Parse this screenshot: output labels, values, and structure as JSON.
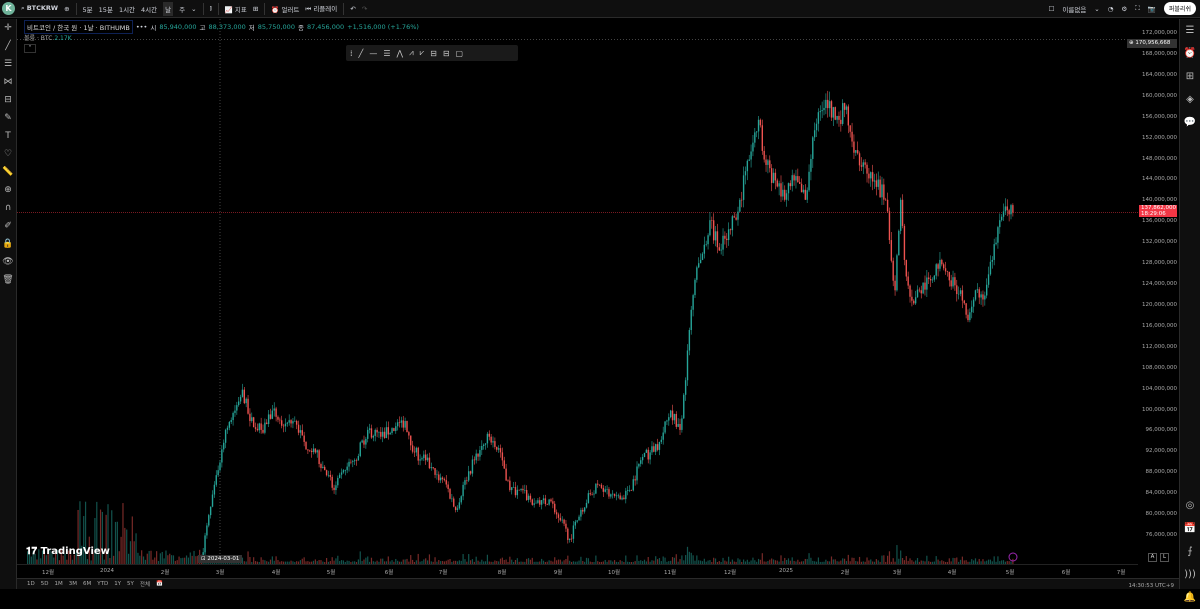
{
  "topbar": {
    "avatar": "K",
    "symbol": "BTCKRW",
    "intervals": [
      "5분",
      "15분",
      "1시간",
      "4시간",
      "날",
      "주"
    ],
    "active_interval": "날",
    "indicators": "지표",
    "alert": "얼러트",
    "replay": "리플레이",
    "layout_name": "이름없음",
    "publish": "퍼블리쉬"
  },
  "legend": {
    "title": "비트코인 / 한국 원 · 1날 · BITHUMB",
    "o_label": "시",
    "o": "85,940,000",
    "h_label": "고",
    "h": "88,373,000",
    "l_label": "저",
    "l": "85,750,000",
    "c_label": "종",
    "c": "87,456,000",
    "change": "+1,516,000 (+1.76%)"
  },
  "volume": {
    "label": "볼륨 · BTC",
    "value": "2.17K"
  },
  "price_axis": {
    "labels": [
      "172,000,000",
      "168,000,000",
      "164,000,000",
      "160,000,000",
      "156,000,000",
      "152,000,000",
      "148,000,000",
      "144,000,000",
      "140,000,000",
      "136,000,000",
      "132,000,000",
      "128,000,000",
      "124,000,000",
      "120,000,000",
      "116,000,000",
      "112,000,000",
      "108,000,000",
      "104,000,000",
      "100,000,000",
      "96,000,000",
      "92,000,000",
      "88,000,000",
      "84,000,000",
      "80,000,000",
      "76,000,000"
    ],
    "crosshair_price": "170,956,668",
    "current_price": "137,862,000",
    "countdown": "18:29:06"
  },
  "time_axis": {
    "labels": [
      "12월",
      "2024",
      "2월",
      "3월",
      "4월",
      "5월",
      "6월",
      "7월",
      "8월",
      "9월",
      "10월",
      "11월",
      "12월",
      "2025",
      "2월",
      "3월",
      "4월",
      "5월",
      "6월",
      "7월"
    ],
    "crosshair_date": "2024-03-01"
  },
  "bottombar": {
    "ranges": [
      "1D",
      "5D",
      "1M",
      "3M",
      "6M",
      "YTD",
      "1Y",
      "5Y",
      "전체"
    ],
    "clock": "14:30:53 UTC+9",
    "auto": "A",
    "log": "L"
  },
  "brand": "TradingView",
  "colors": {
    "up": "#26a69a",
    "down": "#ef5350",
    "current": "#f23645"
  },
  "chart_data": {
    "type": "candlestick",
    "ylim": [
      74000000,
      174000000
    ],
    "xlim": [
      "2023-11-10",
      "2025-07-20"
    ],
    "closes": [
      [
        "2024-02-20",
        72000000
      ],
      [
        "2024-02-29",
        88600000
      ],
      [
        "2024-03-04",
        96300000
      ],
      [
        "2024-03-09",
        100000000
      ],
      [
        "2024-03-13",
        104000000
      ],
      [
        "2024-03-17",
        98000000
      ],
      [
        "2024-03-23",
        96300000
      ],
      [
        "2024-03-29",
        100000000
      ],
      [
        "2024-04-04",
        97000000
      ],
      [
        "2024-04-10",
        98000000
      ],
      [
        "2024-04-15",
        94000000
      ],
      [
        "2024-04-21",
        92000000
      ],
      [
        "2024-04-26",
        88600000
      ],
      [
        "2024-05-01",
        84800000
      ],
      [
        "2024-05-07",
        88600000
      ],
      [
        "2024-05-12",
        90500000
      ],
      [
        "2024-05-19",
        96300000
      ],
      [
        "2024-05-26",
        95000000
      ],
      [
        "2024-06-03",
        97000000
      ],
      [
        "2024-06-08",
        98000000
      ],
      [
        "2024-06-13",
        92000000
      ],
      [
        "2024-06-19",
        90500000
      ],
      [
        "2024-06-24",
        87700000
      ],
      [
        "2024-06-29",
        86700000
      ],
      [
        "2024-07-05",
        81000000
      ],
      [
        "2024-07-10",
        86700000
      ],
      [
        "2024-07-15",
        90500000
      ],
      [
        "2024-07-23",
        95000000
      ],
      [
        "2024-07-29",
        92000000
      ],
      [
        "2024-08-03",
        84800000
      ],
      [
        "2024-08-08",
        84800000
      ],
      [
        "2024-08-14",
        83000000
      ],
      [
        "2024-08-19",
        82000000
      ],
      [
        "2024-08-24",
        83000000
      ],
      [
        "2024-08-30",
        79000000
      ],
      [
        "2024-09-04",
        75500000
      ],
      [
        "2024-09-10",
        81000000
      ],
      [
        "2024-09-15",
        84000000
      ],
      [
        "2024-09-20",
        85800000
      ],
      [
        "2024-09-26",
        84000000
      ],
      [
        "2024-10-01",
        83000000
      ],
      [
        "2024-10-06",
        84800000
      ],
      [
        "2024-10-12",
        90500000
      ],
      [
        "2024-10-17",
        92000000
      ],
      [
        "2024-10-22",
        94000000
      ],
      [
        "2024-10-28",
        100000000
      ],
      [
        "2024-11-02",
        96300000
      ],
      [
        "2024-11-05",
        105800000
      ],
      [
        "2024-11-07",
        115400000
      ],
      [
        "2024-11-10",
        125000000
      ],
      [
        "2024-11-13",
        128800000
      ],
      [
        "2024-11-18",
        136400000
      ],
      [
        "2024-11-23",
        130600000
      ],
      [
        "2024-11-29",
        134500000
      ],
      [
        "2024-12-04",
        140300000
      ],
      [
        "2024-12-09",
        148000000
      ],
      [
        "2024-12-14",
        155600000
      ],
      [
        "2024-12-17",
        148000000
      ],
      [
        "2024-12-23",
        144000000
      ],
      [
        "2024-12-28",
        140300000
      ],
      [
        "2025-01-02",
        144000000
      ],
      [
        "2025-01-08",
        140300000
      ],
      [
        "2025-01-13",
        153600000
      ],
      [
        "2025-01-19",
        159400000
      ],
      [
        "2025-01-24",
        155600000
      ],
      [
        "2025-01-29",
        157500000
      ],
      [
        "2025-02-04",
        149800000
      ],
      [
        "2025-02-09",
        147000000
      ],
      [
        "2025-02-14",
        144000000
      ],
      [
        "2025-02-20",
        140300000
      ],
      [
        "2025-02-22",
        132600000
      ],
      [
        "2025-02-25",
        123000000
      ],
      [
        "2025-02-28",
        140300000
      ],
      [
        "2025-03-02",
        128800000
      ],
      [
        "2025-03-06",
        121000000
      ],
      [
        "2025-03-10",
        123000000
      ],
      [
        "2025-03-16",
        124900000
      ],
      [
        "2025-03-21",
        128800000
      ],
      [
        "2025-03-26",
        124900000
      ],
      [
        "2025-04-01",
        123000000
      ],
      [
        "2025-04-05",
        117300000
      ],
      [
        "2025-04-09",
        123000000
      ],
      [
        "2025-04-14",
        122000000
      ],
      [
        "2025-04-18",
        128800000
      ],
      [
        "2025-04-22",
        136400000
      ],
      [
        "2025-04-26",
        138300000
      ],
      [
        "2025-04-29",
        137862000
      ]
    ]
  }
}
